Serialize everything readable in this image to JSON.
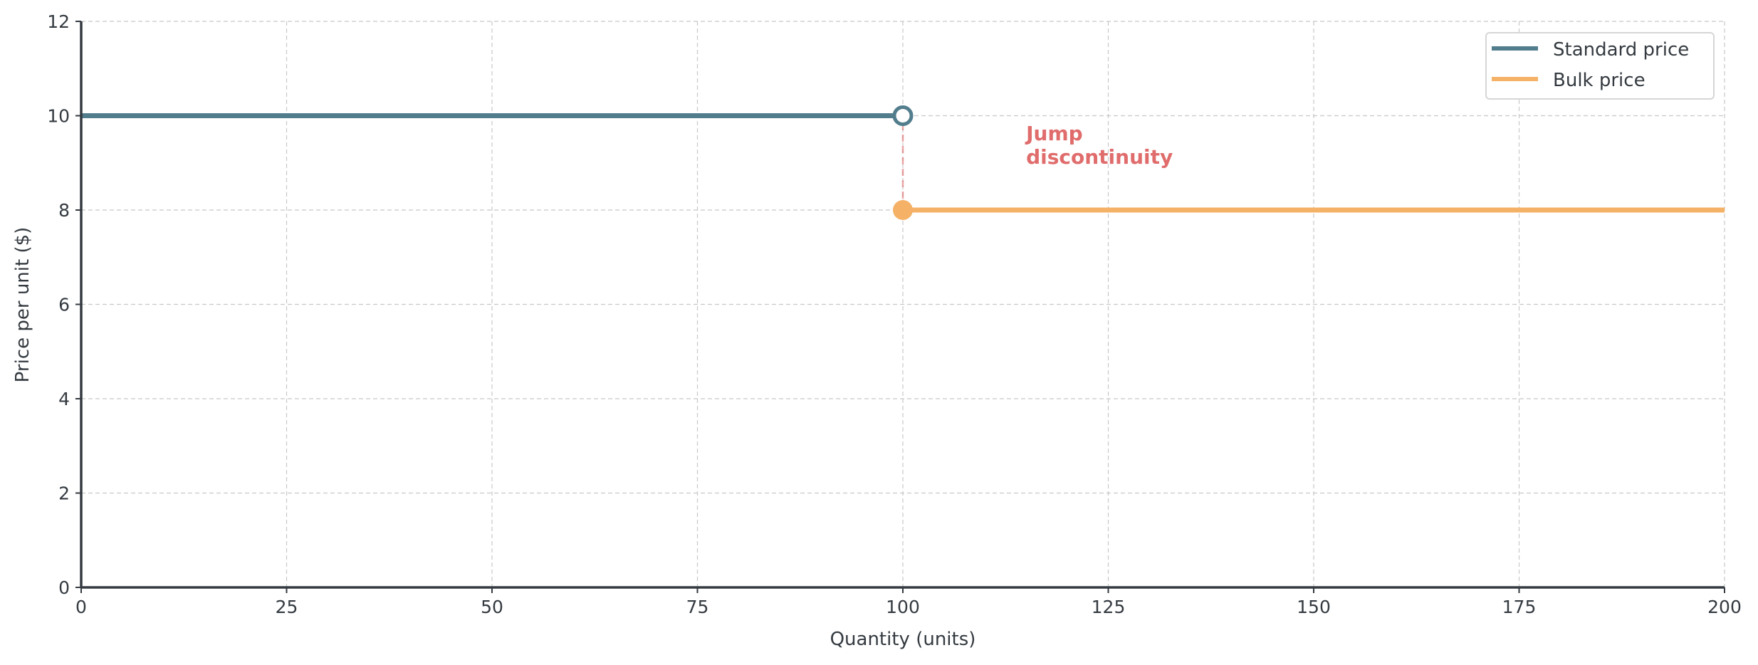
{
  "chart_data": {
    "type": "line",
    "title": "",
    "xlabel": "Quantity (units)",
    "ylabel": "Price per unit ($)",
    "xlim": [
      0,
      200
    ],
    "ylim": [
      0,
      12
    ],
    "xticks": [
      0,
      25,
      50,
      75,
      100,
      125,
      150,
      175,
      200
    ],
    "yticks": [
      0,
      2,
      4,
      6,
      8,
      10,
      12
    ],
    "grid": true,
    "legend_position": "top-right",
    "series": [
      {
        "name": "Standard price",
        "color": "#527d8c",
        "x": [
          0,
          100
        ],
        "y": [
          10,
          10
        ],
        "endpoint": {
          "x": 100,
          "y": 10,
          "style": "open"
        }
      },
      {
        "name": "Bulk price",
        "color": "#f5b166",
        "x": [
          100,
          200
        ],
        "y": [
          8,
          8
        ],
        "endpoint": {
          "x": 100,
          "y": 8,
          "style": "filled"
        }
      }
    ],
    "jump_line": {
      "x": 100,
      "y": [
        8,
        10
      ],
      "color": "#e06c6c"
    },
    "annotation": {
      "lines": [
        "Jump",
        "discontinuity"
      ],
      "x": 115,
      "y": 9.3,
      "color": "#e06c6c"
    }
  }
}
